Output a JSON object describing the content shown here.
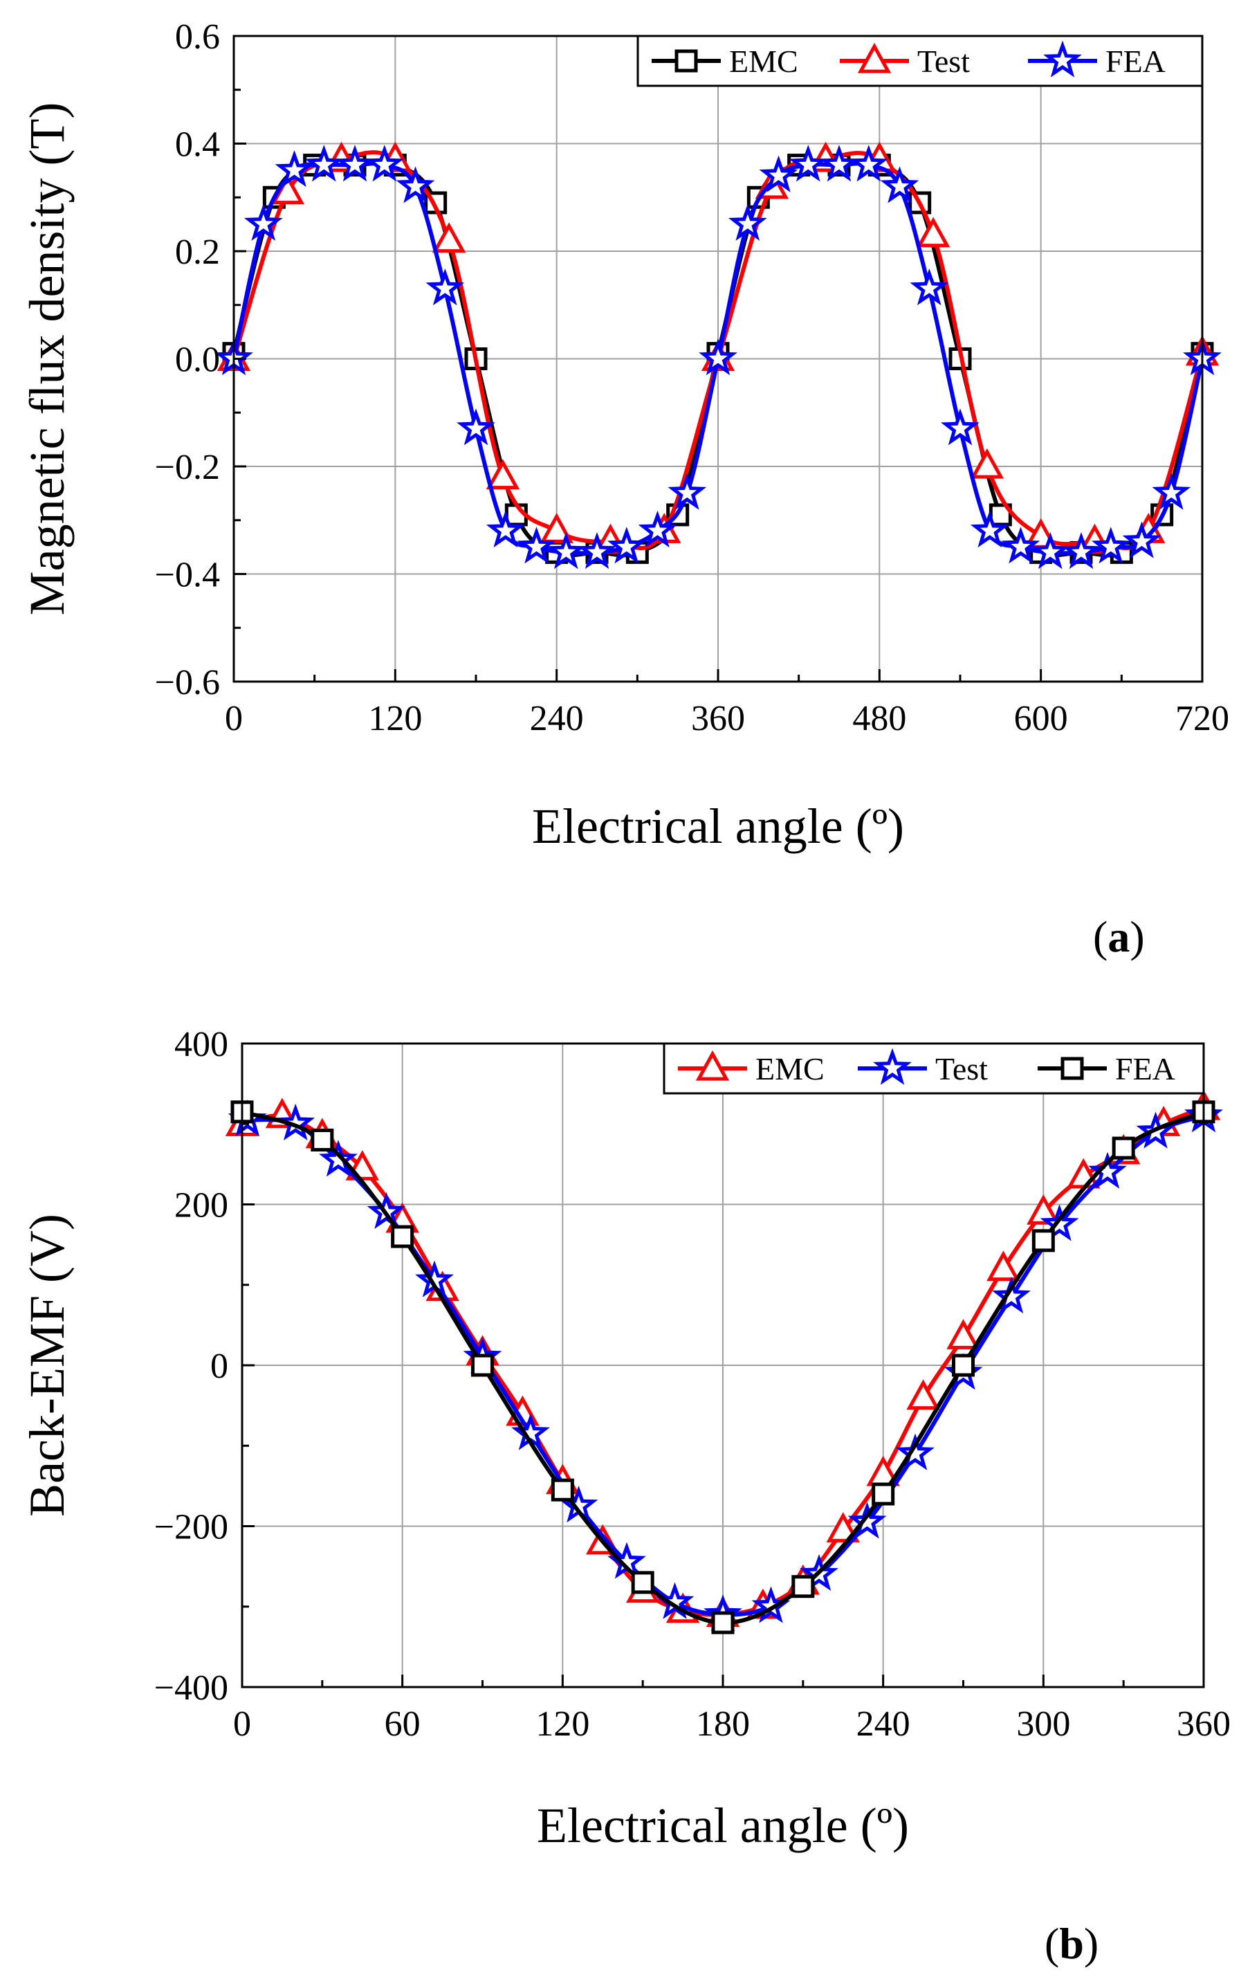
{
  "chart_data": [
    {
      "type": "line",
      "panel_label_open": "(",
      "panel_label_letter": "a",
      "panel_label_close": ")",
      "xlabel": "Electrical angle (º)",
      "ylabel": "Magnetic flux density (T)",
      "xlim": [
        0,
        720
      ],
      "ylim": [
        -0.6,
        0.6
      ],
      "xticks": [
        0,
        120,
        240,
        360,
        480,
        600,
        720
      ],
      "xtick_labels": [
        "0",
        "120",
        "240",
        "360",
        "480",
        "600",
        "720"
      ],
      "yticks": [
        -0.6,
        -0.4,
        -0.2,
        0.0,
        0.2,
        0.4,
        0.6
      ],
      "ytick_labels": [
        "−0.6",
        "−0.4",
        "−0.2",
        "0.0",
        "0.2",
        "0.4",
        "0.6"
      ],
      "grid": true,
      "legend": "top-right",
      "series": [
        {
          "name": "EMC",
          "color": "#000000",
          "marker": "square",
          "x": [
            0,
            30,
            60,
            90,
            120,
            150,
            180,
            210,
            240,
            270,
            300,
            330,
            360,
            390,
            420,
            450,
            480,
            510,
            540,
            570,
            600,
            630,
            660,
            690,
            720
          ],
          "y": [
            0.01,
            0.3,
            0.36,
            0.36,
            0.36,
            0.29,
            0.0,
            -0.29,
            -0.36,
            -0.36,
            -0.36,
            -0.29,
            0.01,
            0.3,
            0.36,
            0.36,
            0.36,
            0.29,
            0.0,
            -0.29,
            -0.36,
            -0.36,
            -0.36,
            -0.29,
            0.01
          ]
        },
        {
          "name": "Test",
          "color": "#ff0000",
          "marker": "triangle",
          "x": [
            0,
            40,
            80,
            120,
            160,
            200,
            240,
            280,
            320,
            360,
            400,
            440,
            480,
            520,
            560,
            600,
            640,
            680,
            720
          ],
          "y": [
            0.0,
            0.31,
            0.37,
            0.37,
            0.22,
            -0.22,
            -0.32,
            -0.34,
            -0.32,
            0.0,
            0.32,
            0.37,
            0.37,
            0.23,
            -0.2,
            -0.33,
            -0.34,
            -0.32,
            0.01
          ]
        },
        {
          "name": "FEA",
          "color": "#0000ff",
          "marker": "star",
          "x": [
            0,
            22,
            45,
            67,
            90,
            112,
            135,
            157,
            180,
            202,
            225,
            247,
            270,
            292,
            315,
            337,
            360,
            382,
            405,
            427,
            450,
            472,
            495,
            517,
            540,
            562,
            585,
            607,
            630,
            652,
            675,
            697,
            720
          ],
          "y": [
            0.0,
            0.25,
            0.35,
            0.36,
            0.36,
            0.36,
            0.32,
            0.13,
            -0.13,
            -0.32,
            -0.35,
            -0.36,
            -0.36,
            -0.35,
            -0.32,
            -0.25,
            0.0,
            0.25,
            0.34,
            0.36,
            0.36,
            0.36,
            0.32,
            0.13,
            -0.13,
            -0.32,
            -0.35,
            -0.36,
            -0.36,
            -0.35,
            -0.34,
            -0.25,
            0.0
          ]
        }
      ]
    },
    {
      "type": "line",
      "panel_label_open": "(",
      "panel_label_letter": "b",
      "panel_label_close": ")",
      "xlabel": "Electrical angle (º)",
      "ylabel": "Back-EMF (V)",
      "xlim": [
        0,
        360
      ],
      "ylim": [
        -400,
        400
      ],
      "xticks": [
        0,
        60,
        120,
        180,
        240,
        300,
        360
      ],
      "xtick_labels": [
        "0",
        "60",
        "120",
        "180",
        "240",
        "300",
        "360"
      ],
      "yticks": [
        -400,
        -200,
        0,
        200,
        400
      ],
      "ytick_labels": [
        "−400",
        "−200",
        "0",
        "200",
        "400"
      ],
      "grid": true,
      "legend": "top-right",
      "series": [
        {
          "name": "EMC",
          "color": "#ff0000",
          "marker": "triangle",
          "x": [
            0,
            15,
            30,
            45,
            60,
            75,
            90,
            105,
            120,
            135,
            150,
            165,
            180,
            195,
            210,
            225,
            240,
            255,
            270,
            285,
            300,
            315,
            330,
            345,
            360
          ],
          "y": [
            300,
            310,
            285,
            245,
            180,
            95,
            15,
            -60,
            -145,
            -220,
            -280,
            -305,
            -310,
            -300,
            -270,
            -205,
            -135,
            -40,
            35,
            120,
            190,
            235,
            265,
            300,
            320
          ]
        },
        {
          "name": "Test",
          "color": "#0000ff",
          "marker": "star",
          "x": [
            2,
            20,
            36,
            54,
            72,
            90,
            108,
            126,
            144,
            162,
            180,
            198,
            216,
            234,
            252,
            270,
            288,
            306,
            324,
            342,
            360
          ],
          "y": [
            305,
            300,
            255,
            190,
            105,
            10,
            -85,
            -175,
            -245,
            -295,
            -310,
            -300,
            -260,
            -195,
            -110,
            -10,
            85,
            175,
            240,
            290,
            310
          ]
        },
        {
          "name": "FEA",
          "color": "#000000",
          "marker": "square",
          "x": [
            0,
            30,
            60,
            90,
            120,
            150,
            180,
            210,
            240,
            270,
            300,
            330,
            360
          ],
          "y": [
            315,
            280,
            160,
            0,
            -155,
            -270,
            -320,
            -275,
            -160,
            0,
            155,
            270,
            315
          ]
        }
      ]
    }
  ]
}
